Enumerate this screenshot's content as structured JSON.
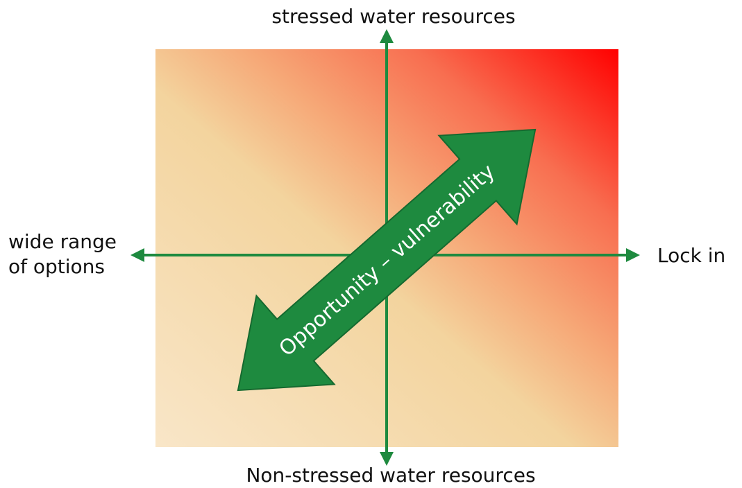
{
  "labels": {
    "top": "stressed water resources",
    "bottom": "Non-stressed water resources",
    "left": [
      "wide range",
      "of options"
    ],
    "right": "Lock in"
  },
  "arrow_label": "Opportunity – vulnerability"
}
